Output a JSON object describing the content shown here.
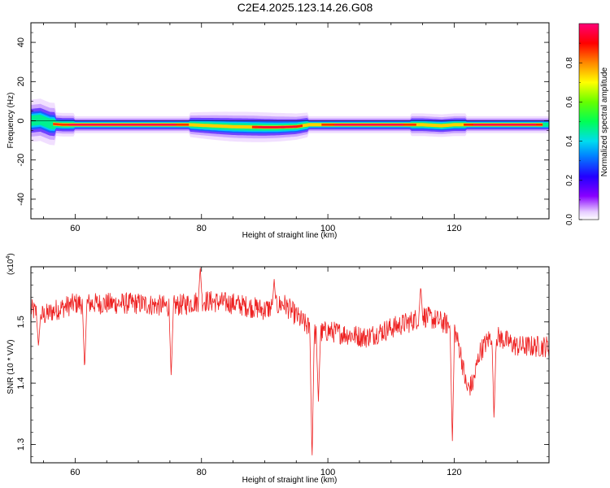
{
  "title": "C2E4.2025.123.14.26.G08",
  "colors": {
    "snr_line": "#ee2222",
    "axis": "#000000"
  },
  "chart_data": [
    {
      "type": "heatmap",
      "xlabel": "Height of straight line (km)",
      "ylabel": "Frequency (Hz)",
      "xlim": [
        53,
        135
      ],
      "ylim": [
        -50,
        50
      ],
      "xticks": [
        60,
        80,
        100,
        120
      ],
      "yticks": [
        -40,
        -20,
        0,
        20,
        40
      ],
      "colorbar": {
        "label": "Normalized spectral amplitude",
        "range": [
          0.0,
          1.0
        ],
        "ticks": [
          0.0,
          0.2,
          0.4,
          0.6,
          0.8
        ],
        "tick_labels": [
          "0.0",
          "0.2",
          "0.4",
          "0.6",
          "0.8"
        ],
        "colormap": "rainbow (violet → blue → cyan → green → yellow → red → magenta)"
      },
      "ridge_center": [
        [
          53,
          0
        ],
        [
          54.5,
          0.5
        ],
        [
          56,
          -1.5
        ],
        [
          58,
          -2
        ],
        [
          60,
          -2
        ],
        [
          70,
          -2
        ],
        [
          78,
          -2
        ],
        [
          80,
          -2.3
        ],
        [
          85,
          -3
        ],
        [
          90,
          -3.3
        ],
        [
          92,
          -3.3
        ],
        [
          95,
          -3
        ],
        [
          97,
          -2
        ],
        [
          100,
          -2
        ],
        [
          110,
          -2
        ],
        [
          115,
          -2
        ],
        [
          118,
          -2.5
        ],
        [
          120,
          -2
        ],
        [
          122,
          -2
        ],
        [
          125,
          -2
        ],
        [
          130,
          -2
        ],
        [
          134,
          -2
        ]
      ]
    },
    {
      "type": "line",
      "xlabel": "Height of straight line (km)",
      "ylabel": "SNR (10 * V/V)",
      "multiplier_label": "(x10",
      "multiplier_exp": "4",
      "multiplier_close": ")",
      "xlim": [
        53,
        135
      ],
      "ylim": [
        1.27,
        1.59
      ],
      "xticks": [
        60,
        80,
        100,
        120
      ],
      "yticks": [
        1.3,
        1.4,
        1.5
      ],
      "yticklabels": [
        "1.3",
        "1.4",
        "1.5"
      ],
      "series": [
        {
          "baseline": [
            [
              53,
              1.52
            ],
            [
              55,
              1.51
            ],
            [
              57,
              1.52
            ],
            [
              60,
              1.53
            ],
            [
              65,
              1.53
            ],
            [
              70,
              1.53
            ],
            [
              75,
              1.525
            ],
            [
              78,
              1.53
            ],
            [
              80,
              1.535
            ],
            [
              85,
              1.53
            ],
            [
              90,
              1.52
            ],
            [
              93,
              1.53
            ],
            [
              95,
              1.51
            ],
            [
              97,
              1.49
            ],
            [
              98,
              1.48
            ],
            [
              100,
              1.485
            ],
            [
              103,
              1.48
            ],
            [
              106,
              1.475
            ],
            [
              110,
              1.49
            ],
            [
              113,
              1.5
            ],
            [
              115,
              1.51
            ],
            [
              118,
              1.5
            ],
            [
              120,
              1.49
            ],
            [
              121,
              1.45
            ],
            [
              122,
              1.39
            ],
            [
              123,
              1.4
            ],
            [
              124,
              1.45
            ],
            [
              126,
              1.48
            ],
            [
              128,
              1.47
            ],
            [
              130,
              1.46
            ],
            [
              132,
              1.46
            ],
            [
              135,
              1.46
            ]
          ],
          "dips": [
            [
              54.2,
              1.46
            ],
            [
              61.5,
              1.42
            ],
            [
              75.2,
              1.41
            ],
            [
              97.5,
              1.27
            ],
            [
              98.5,
              1.37
            ],
            [
              119.7,
              1.3
            ],
            [
              126.3,
              1.34
            ]
          ],
          "spikes": [
            [
              79.8,
              1.59
            ],
            [
              91.5,
              1.57
            ],
            [
              114.7,
              1.56
            ]
          ],
          "noise_amplitude": 0.018
        }
      ]
    }
  ]
}
